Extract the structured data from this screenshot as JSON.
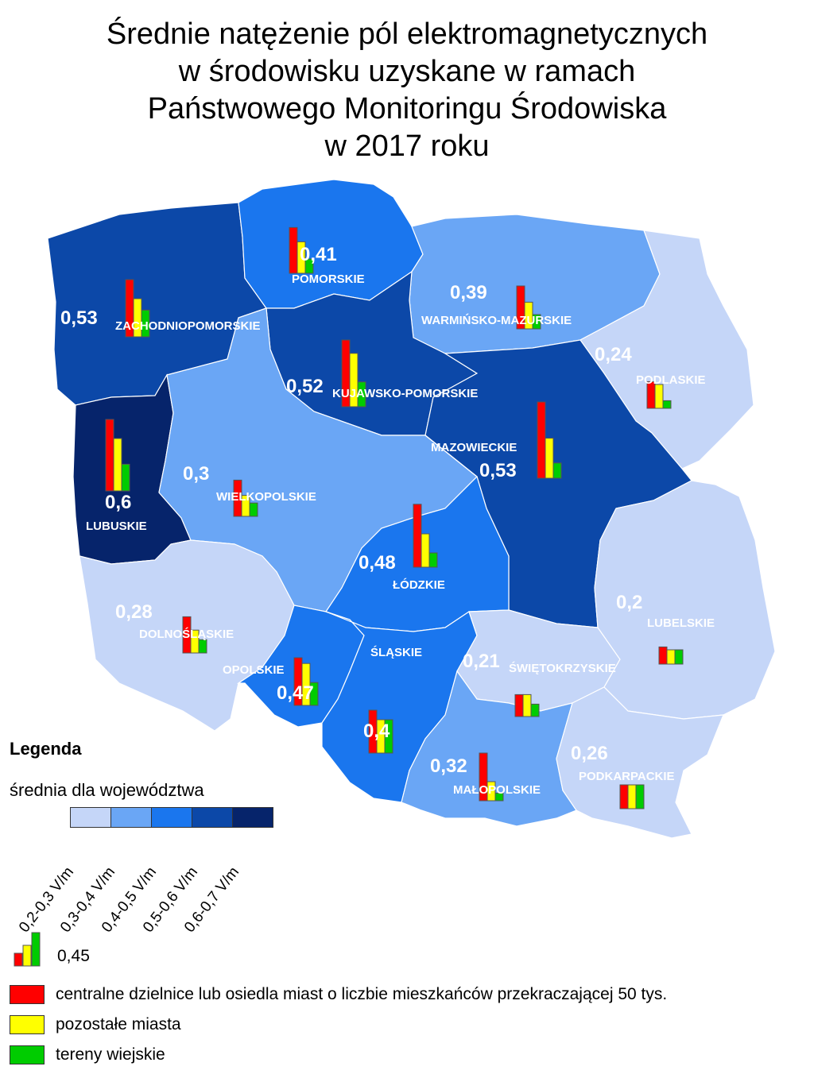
{
  "title_lines": [
    "Średnie natężenie pól elektromagnetycznych",
    "w środowisku uzyskane w ramach",
    "Państwowego Monitoringu Środowiska",
    "w 2017 roku"
  ],
  "colors": {
    "class_1": "#c5d6f8",
    "class_2": "#6aa6f5",
    "class_3": "#1a76ee",
    "class_4": "#0c48a8",
    "class_5": "#06246b",
    "bar_red": "#ff0000",
    "bar_yellow": "#ffff00",
    "bar_green": "#00cc00",
    "border": "#ffffff"
  },
  "regions": [
    {
      "name": "ZACHODNIOPOMORSKIE",
      "value": "0,53",
      "class": 4,
      "bars": [
        0.6,
        0.4,
        0.28
      ]
    },
    {
      "name": "POMORSKIE",
      "value": "0,41",
      "class": 3,
      "bars": [
        0.48,
        0.33,
        0.15
      ]
    },
    {
      "name": "WARMIŃSKO-MAZURSKIE",
      "value": "0,39",
      "class": 2,
      "bars": [
        0.45,
        0.28,
        0.15
      ]
    },
    {
      "name": "PODLASKIE",
      "value": "0,24",
      "class": 1,
      "bars": [
        0.28,
        0.25,
        0.08
      ]
    },
    {
      "name": "KUJAWSKO-POMORSKIE",
      "value": "0,52",
      "class": 4,
      "bars": [
        0.7,
        0.56,
        0.26
      ]
    },
    {
      "name": "MAZOWIECKIE",
      "value": "0,53",
      "class": 4,
      "bars": [
        0.8,
        0.42,
        0.16
      ]
    },
    {
      "name": "LUBUSKIE",
      "value": "0,6",
      "class": 5,
      "bars": [
        0.75,
        0.55,
        0.28
      ]
    },
    {
      "name": "WIELKOPOLSKIE",
      "value": "0,3",
      "class": 2,
      "bars": [
        0.38,
        0.22,
        0.14
      ]
    },
    {
      "name": "ŁÓDZKIE",
      "value": "0,48",
      "class": 3,
      "bars": [
        0.66,
        0.35,
        0.15
      ]
    },
    {
      "name": "DOLNOŚLĄSKIE",
      "value": "0,28",
      "class": 1,
      "bars": [
        0.38,
        0.24,
        0.14
      ]
    },
    {
      "name": "OPOLSKIE",
      "value": "0,47",
      "class": 3,
      "bars": [
        0.5,
        0.44,
        0.24
      ]
    },
    {
      "name": "ŚLĄSKIE",
      "value": "0,4",
      "class": 3,
      "bars": [
        0.45,
        0.35,
        0.35
      ]
    },
    {
      "name": "ŚWIĘTOKRZYSKIE",
      "value": "0,21",
      "class": 1,
      "bars": [
        0.23,
        0.23,
        0.13
      ]
    },
    {
      "name": "LUBELSKIE",
      "value": "0,2",
      "class": 1,
      "bars": [
        0.18,
        0.15,
        0.15
      ]
    },
    {
      "name": "MAŁOPOLSKIE",
      "value": "0,32",
      "class": 2,
      "bars": [
        0.5,
        0.2,
        0.08
      ]
    },
    {
      "name": "PODKARPACKIE",
      "value": "0,26",
      "class": 1,
      "bars": [
        0.25,
        0.25,
        0.25
      ]
    }
  ],
  "legend": {
    "title": "Legenda",
    "subtitle": "średnia dla województwa",
    "ranges": [
      "0,2-0,3 V/m",
      "0,3-0,4 V/m",
      "0,4-0,5 V/m",
      "0,5-0,6 V/m",
      "0,6-0,7 V/m"
    ],
    "example_value": "0,45",
    "items": [
      {
        "label": "centralne dzielnice lub osiedla miast o liczbie mieszkańców przekraczającej 50 tys.",
        "color": "#ff0000"
      },
      {
        "label": "pozostałe miasta",
        "color": "#ffff00"
      },
      {
        "label": "tereny wiejskie",
        "color": "#00cc00"
      }
    ]
  }
}
